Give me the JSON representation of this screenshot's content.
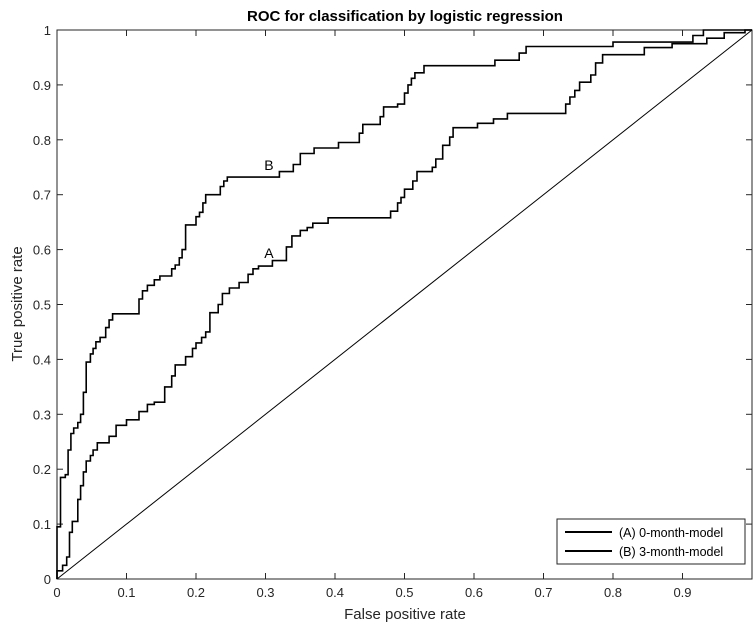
{
  "chart_data": {
    "type": "line",
    "title": "ROC for classification by logistic regression",
    "xlabel": "False positive rate",
    "ylabel": "True positive rate",
    "xlim": [
      0,
      1
    ],
    "ylim": [
      0,
      1
    ],
    "xticks": [
      "0",
      "0.1",
      "0.2",
      "0.3",
      "0.4",
      "0.5",
      "0.6",
      "0.7",
      "0.8",
      "0.9"
    ],
    "yticks": [
      "0",
      "0.1",
      "0.2",
      "0.3",
      "0.4",
      "0.5",
      "0.6",
      "0.7",
      "0.8",
      "0.9",
      "1"
    ],
    "xtick_values": [
      0,
      0.1,
      0.2,
      0.3,
      0.4,
      0.5,
      0.6,
      0.7,
      0.8,
      0.9
    ],
    "ytick_values": [
      0,
      0.1,
      0.2,
      0.3,
      0.4,
      0.5,
      0.6,
      0.7,
      0.8,
      0.9,
      1
    ],
    "grid": false,
    "legend_position": "bottom-right",
    "annotations": [
      {
        "text": "A",
        "x": 0.305,
        "y": 0.585
      },
      {
        "text": "B",
        "x": 0.305,
        "y": 0.745
      }
    ],
    "series": [
      {
        "name": "(A) 0-month-model",
        "color": "#000000",
        "points": [
          [
            0,
            0
          ],
          [
            0,
            0.015
          ],
          [
            0.008,
            0.015
          ],
          [
            0.008,
            0.025
          ],
          [
            0.014,
            0.025
          ],
          [
            0.014,
            0.04
          ],
          [
            0.018,
            0.04
          ],
          [
            0.018,
            0.085
          ],
          [
            0.022,
            0.085
          ],
          [
            0.022,
            0.105
          ],
          [
            0.03,
            0.105
          ],
          [
            0.03,
            0.145
          ],
          [
            0.034,
            0.145
          ],
          [
            0.034,
            0.17
          ],
          [
            0.038,
            0.17
          ],
          [
            0.038,
            0.195
          ],
          [
            0.042,
            0.195
          ],
          [
            0.042,
            0.215
          ],
          [
            0.048,
            0.215
          ],
          [
            0.048,
            0.225
          ],
          [
            0.052,
            0.225
          ],
          [
            0.052,
            0.235
          ],
          [
            0.058,
            0.235
          ],
          [
            0.058,
            0.248
          ],
          [
            0.075,
            0.248
          ],
          [
            0.075,
            0.26
          ],
          [
            0.085,
            0.26
          ],
          [
            0.085,
            0.28
          ],
          [
            0.1,
            0.28
          ],
          [
            0.1,
            0.29
          ],
          [
            0.118,
            0.29
          ],
          [
            0.118,
            0.305
          ],
          [
            0.13,
            0.305
          ],
          [
            0.13,
            0.318
          ],
          [
            0.14,
            0.318
          ],
          [
            0.14,
            0.322
          ],
          [
            0.155,
            0.322
          ],
          [
            0.155,
            0.35
          ],
          [
            0.165,
            0.35
          ],
          [
            0.165,
            0.37
          ],
          [
            0.17,
            0.37
          ],
          [
            0.17,
            0.39
          ],
          [
            0.185,
            0.39
          ],
          [
            0.185,
            0.405
          ],
          [
            0.195,
            0.405
          ],
          [
            0.195,
            0.42
          ],
          [
            0.2,
            0.42
          ],
          [
            0.2,
            0.43
          ],
          [
            0.208,
            0.43
          ],
          [
            0.208,
            0.44
          ],
          [
            0.214,
            0.44
          ],
          [
            0.214,
            0.45
          ],
          [
            0.22,
            0.45
          ],
          [
            0.22,
            0.485
          ],
          [
            0.232,
            0.485
          ],
          [
            0.232,
            0.5
          ],
          [
            0.238,
            0.5
          ],
          [
            0.238,
            0.52
          ],
          [
            0.248,
            0.52
          ],
          [
            0.248,
            0.53
          ],
          [
            0.262,
            0.53
          ],
          [
            0.262,
            0.54
          ],
          [
            0.275,
            0.54
          ],
          [
            0.275,
            0.555
          ],
          [
            0.282,
            0.555
          ],
          [
            0.282,
            0.565
          ],
          [
            0.29,
            0.565
          ],
          [
            0.29,
            0.57
          ],
          [
            0.31,
            0.57
          ],
          [
            0.31,
            0.58
          ],
          [
            0.33,
            0.58
          ],
          [
            0.33,
            0.605
          ],
          [
            0.338,
            0.605
          ],
          [
            0.338,
            0.625
          ],
          [
            0.35,
            0.625
          ],
          [
            0.35,
            0.635
          ],
          [
            0.36,
            0.635
          ],
          [
            0.36,
            0.64
          ],
          [
            0.368,
            0.64
          ],
          [
            0.368,
            0.648
          ],
          [
            0.39,
            0.648
          ],
          [
            0.39,
            0.658
          ],
          [
            0.48,
            0.658
          ],
          [
            0.48,
            0.67
          ],
          [
            0.49,
            0.67
          ],
          [
            0.49,
            0.685
          ],
          [
            0.495,
            0.685
          ],
          [
            0.495,
            0.695
          ],
          [
            0.5,
            0.695
          ],
          [
            0.5,
            0.71
          ],
          [
            0.512,
            0.71
          ],
          [
            0.512,
            0.725
          ],
          [
            0.518,
            0.725
          ],
          [
            0.518,
            0.742
          ],
          [
            0.54,
            0.742
          ],
          [
            0.54,
            0.75
          ],
          [
            0.545,
            0.75
          ],
          [
            0.545,
            0.765
          ],
          [
            0.555,
            0.765
          ],
          [
            0.555,
            0.79
          ],
          [
            0.565,
            0.79
          ],
          [
            0.565,
            0.805
          ],
          [
            0.57,
            0.805
          ],
          [
            0.57,
            0.822
          ],
          [
            0.605,
            0.822
          ],
          [
            0.605,
            0.83
          ],
          [
            0.628,
            0.83
          ],
          [
            0.628,
            0.838
          ],
          [
            0.648,
            0.838
          ],
          [
            0.648,
            0.848
          ],
          [
            0.732,
            0.848
          ],
          [
            0.732,
            0.865
          ],
          [
            0.738,
            0.865
          ],
          [
            0.738,
            0.878
          ],
          [
            0.745,
            0.878
          ],
          [
            0.745,
            0.89
          ],
          [
            0.752,
            0.89
          ],
          [
            0.752,
            0.905
          ],
          [
            0.768,
            0.905
          ],
          [
            0.768,
            0.918
          ],
          [
            0.775,
            0.918
          ],
          [
            0.775,
            0.94
          ],
          [
            0.785,
            0.94
          ],
          [
            0.785,
            0.955
          ],
          [
            0.845,
            0.955
          ],
          [
            0.845,
            0.968
          ],
          [
            0.885,
            0.968
          ],
          [
            0.885,
            0.975
          ],
          [
            0.935,
            0.975
          ],
          [
            0.935,
            0.985
          ],
          [
            0.96,
            0.985
          ],
          [
            0.96,
            0.995
          ],
          [
            0.99,
            0.995
          ],
          [
            0.99,
            1
          ],
          [
            1,
            1
          ]
        ]
      },
      {
        "name": "(B) 3-month-model",
        "color": "#000000",
        "points": [
          [
            0,
            0
          ],
          [
            0,
            0.095
          ],
          [
            0.005,
            0.095
          ],
          [
            0.005,
            0.185
          ],
          [
            0.012,
            0.185
          ],
          [
            0.012,
            0.19
          ],
          [
            0.016,
            0.19
          ],
          [
            0.016,
            0.235
          ],
          [
            0.02,
            0.235
          ],
          [
            0.02,
            0.265
          ],
          [
            0.024,
            0.265
          ],
          [
            0.024,
            0.275
          ],
          [
            0.03,
            0.275
          ],
          [
            0.03,
            0.285
          ],
          [
            0.034,
            0.285
          ],
          [
            0.034,
            0.3
          ],
          [
            0.038,
            0.3
          ],
          [
            0.038,
            0.34
          ],
          [
            0.042,
            0.34
          ],
          [
            0.042,
            0.395
          ],
          [
            0.048,
            0.395
          ],
          [
            0.048,
            0.41
          ],
          [
            0.052,
            0.41
          ],
          [
            0.052,
            0.42
          ],
          [
            0.056,
            0.42
          ],
          [
            0.056,
            0.432
          ],
          [
            0.062,
            0.432
          ],
          [
            0.062,
            0.44
          ],
          [
            0.07,
            0.44
          ],
          [
            0.07,
            0.458
          ],
          [
            0.075,
            0.458
          ],
          [
            0.075,
            0.472
          ],
          [
            0.08,
            0.472
          ],
          [
            0.08,
            0.483
          ],
          [
            0.118,
            0.483
          ],
          [
            0.118,
            0.51
          ],
          [
            0.123,
            0.51
          ],
          [
            0.123,
            0.525
          ],
          [
            0.13,
            0.525
          ],
          [
            0.13,
            0.535
          ],
          [
            0.14,
            0.535
          ],
          [
            0.14,
            0.545
          ],
          [
            0.148,
            0.545
          ],
          [
            0.148,
            0.552
          ],
          [
            0.165,
            0.552
          ],
          [
            0.165,
            0.565
          ],
          [
            0.17,
            0.565
          ],
          [
            0.17,
            0.572
          ],
          [
            0.176,
            0.572
          ],
          [
            0.176,
            0.585
          ],
          [
            0.18,
            0.585
          ],
          [
            0.18,
            0.6
          ],
          [
            0.185,
            0.6
          ],
          [
            0.185,
            0.645
          ],
          [
            0.2,
            0.645
          ],
          [
            0.2,
            0.66
          ],
          [
            0.205,
            0.66
          ],
          [
            0.205,
            0.668
          ],
          [
            0.21,
            0.668
          ],
          [
            0.21,
            0.685
          ],
          [
            0.214,
            0.685
          ],
          [
            0.214,
            0.7
          ],
          [
            0.235,
            0.7
          ],
          [
            0.235,
            0.715
          ],
          [
            0.24,
            0.715
          ],
          [
            0.24,
            0.725
          ],
          [
            0.245,
            0.725
          ],
          [
            0.245,
            0.732
          ],
          [
            0.32,
            0.732
          ],
          [
            0.32,
            0.742
          ],
          [
            0.34,
            0.742
          ],
          [
            0.34,
            0.755
          ],
          [
            0.35,
            0.755
          ],
          [
            0.35,
            0.775
          ],
          [
            0.37,
            0.775
          ],
          [
            0.37,
            0.785
          ],
          [
            0.405,
            0.785
          ],
          [
            0.405,
            0.795
          ],
          [
            0.435,
            0.795
          ],
          [
            0.435,
            0.812
          ],
          [
            0.44,
            0.812
          ],
          [
            0.44,
            0.828
          ],
          [
            0.465,
            0.828
          ],
          [
            0.465,
            0.842
          ],
          [
            0.47,
            0.842
          ],
          [
            0.47,
            0.86
          ],
          [
            0.49,
            0.86
          ],
          [
            0.49,
            0.865
          ],
          [
            0.5,
            0.865
          ],
          [
            0.5,
            0.885
          ],
          [
            0.505,
            0.885
          ],
          [
            0.505,
            0.9
          ],
          [
            0.51,
            0.9
          ],
          [
            0.51,
            0.912
          ],
          [
            0.515,
            0.912
          ],
          [
            0.515,
            0.922
          ],
          [
            0.528,
            0.922
          ],
          [
            0.528,
            0.935
          ],
          [
            0.63,
            0.935
          ],
          [
            0.63,
            0.945
          ],
          [
            0.665,
            0.945
          ],
          [
            0.665,
            0.958
          ],
          [
            0.675,
            0.958
          ],
          [
            0.675,
            0.97
          ],
          [
            0.8,
            0.97
          ],
          [
            0.8,
            0.978
          ],
          [
            0.915,
            0.978
          ],
          [
            0.915,
            0.99
          ],
          [
            0.93,
            0.99
          ],
          [
            0.93,
            1
          ],
          [
            1,
            1
          ]
        ]
      },
      {
        "name": "",
        "color": "#000000",
        "thin": true,
        "points": [
          [
            0,
            0
          ],
          [
            1,
            1
          ]
        ]
      }
    ]
  }
}
